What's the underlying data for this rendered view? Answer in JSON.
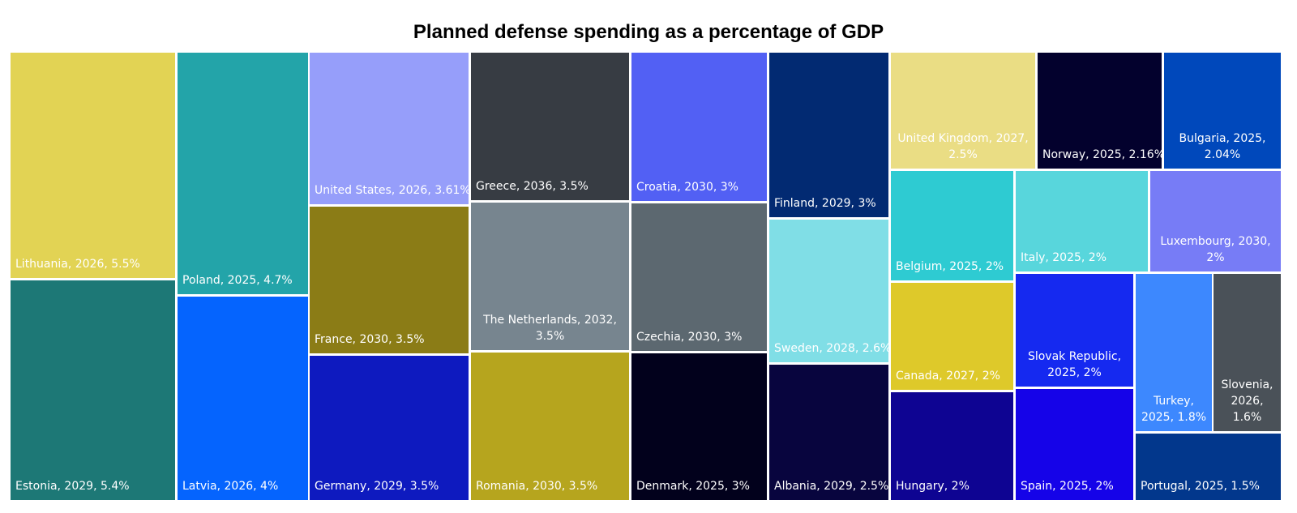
{
  "chart_data": {
    "type": "treemap",
    "title": "Planned defense spending as a percentage of GDP",
    "value_unit": "% of GDP",
    "items": [
      {
        "country": "Lithuania",
        "year": "2026",
        "value": 5.5,
        "label": "Lithuania, 2026, 5.5%",
        "color": "#e2d354"
      },
      {
        "country": "Estonia",
        "year": "2029",
        "value": 5.4,
        "label": "Estonia, 2029, 5.4%",
        "color": "#1d7876"
      },
      {
        "country": "Poland",
        "year": "2025",
        "value": 4.7,
        "label": "Poland, 2025, 4.7%",
        "color": "#23a4a9"
      },
      {
        "country": "Latvia",
        "year": "2026",
        "value": 4,
        "label": "Latvia, 2026, 4%",
        "color": "#0564fe"
      },
      {
        "country": "United States",
        "year": "2026",
        "value": 3.61,
        "label": "United States, 2026, 3.61%",
        "color": "#969efa"
      },
      {
        "country": "France",
        "year": "2030",
        "value": 3.5,
        "label": "France, 2030, 3.5%",
        "color": "#8b7c16"
      },
      {
        "country": "Germany",
        "year": "2029",
        "value": 3.5,
        "label": "Germany, 2029, 3.5%",
        "color": "#0e1abf"
      },
      {
        "country": "Greece",
        "year": "2036",
        "value": 3.5,
        "label": "Greece, 2036, 3.5%",
        "color": "#373c43"
      },
      {
        "country": "The Netherlands",
        "year": "2032",
        "value": 3.5,
        "label": "The Netherlands, 2032, 3.5%",
        "color": "#77858f"
      },
      {
        "country": "Romania",
        "year": "2030",
        "value": 3.5,
        "label": "Romania, 2030, 3.5%",
        "color": "#b6a51e"
      },
      {
        "country": "Croatia",
        "year": "2030",
        "value": 3,
        "label": "Croatia, 2030, 3%",
        "color": "#5260f4"
      },
      {
        "country": "Czechia",
        "year": "2030",
        "value": 3,
        "label": "Czechia, 2030, 3%",
        "color": "#5c6870"
      },
      {
        "country": "Denmark",
        "year": "2025",
        "value": 3,
        "label": "Denmark, 2025, 3%",
        "color": "#02011c"
      },
      {
        "country": "Finland",
        "year": "2029",
        "value": 3,
        "label": "Finland, 2029, 3%",
        "color": "#022a72"
      },
      {
        "country": "Sweden",
        "year": "2028",
        "value": 2.6,
        "label": "Sweden, 2028, 2.6%",
        "color": "#80dee6"
      },
      {
        "country": "Albania",
        "year": "2029",
        "value": 2.5,
        "label": "Albania, 2029, 2.5%",
        "color": "#08053e"
      },
      {
        "country": "United Kingdom",
        "year": "2027",
        "value": 2.5,
        "label": "United Kingdom, 2027, 2.5%",
        "color": "#eadd84"
      },
      {
        "country": "Norway",
        "year": "2025",
        "value": 2.16,
        "label": "Norway, 2025, 2.16%",
        "color": "#03012d"
      },
      {
        "country": "Bulgaria",
        "year": "2025",
        "value": 2.04,
        "label": "Bulgaria, 2025, 2.04%",
        "color": "#0048bb"
      },
      {
        "country": "Belgium",
        "year": "2025",
        "value": 2,
        "label": "Belgium, 2025, 2%",
        "color": "#2ecbd2"
      },
      {
        "country": "Italy",
        "year": "2025",
        "value": 2,
        "label": "Italy, 2025, 2%",
        "color": "#58d6dc"
      },
      {
        "country": "Luxembourg",
        "year": "2030",
        "value": 2,
        "label": "Luxembourg, 2030, 2%",
        "color": "#777cf6"
      },
      {
        "country": "Canada",
        "year": "2027",
        "value": 2,
        "label": "Canada, 2027, 2%",
        "color": "#dec92a"
      },
      {
        "country": "Slovak Republic",
        "year": "2025",
        "value": 2,
        "label": "Slovak Republic, 2025, 2%",
        "color": "#1529f0"
      },
      {
        "country": "Hungary",
        "year": "",
        "value": 2,
        "label": "Hungary, 2%",
        "color": "#0e0492"
      },
      {
        "country": "Spain",
        "year": "2025",
        "value": 2,
        "label": "Spain, 2025, 2%",
        "color": "#1503e8"
      },
      {
        "country": "Turkey",
        "year": "2025",
        "value": 1.8,
        "label": "Turkey, 2025, 1.8%",
        "color": "#3d88fe"
      },
      {
        "country": "Slovenia",
        "year": "2026",
        "value": 1.6,
        "label": "Slovenia, 2026, 1.6%",
        "color": "#4a5158"
      },
      {
        "country": "Portugal",
        "year": "2025",
        "value": 1.5,
        "label": "Portugal, 2025, 1.5%",
        "color": "#02378c"
      }
    ]
  }
}
